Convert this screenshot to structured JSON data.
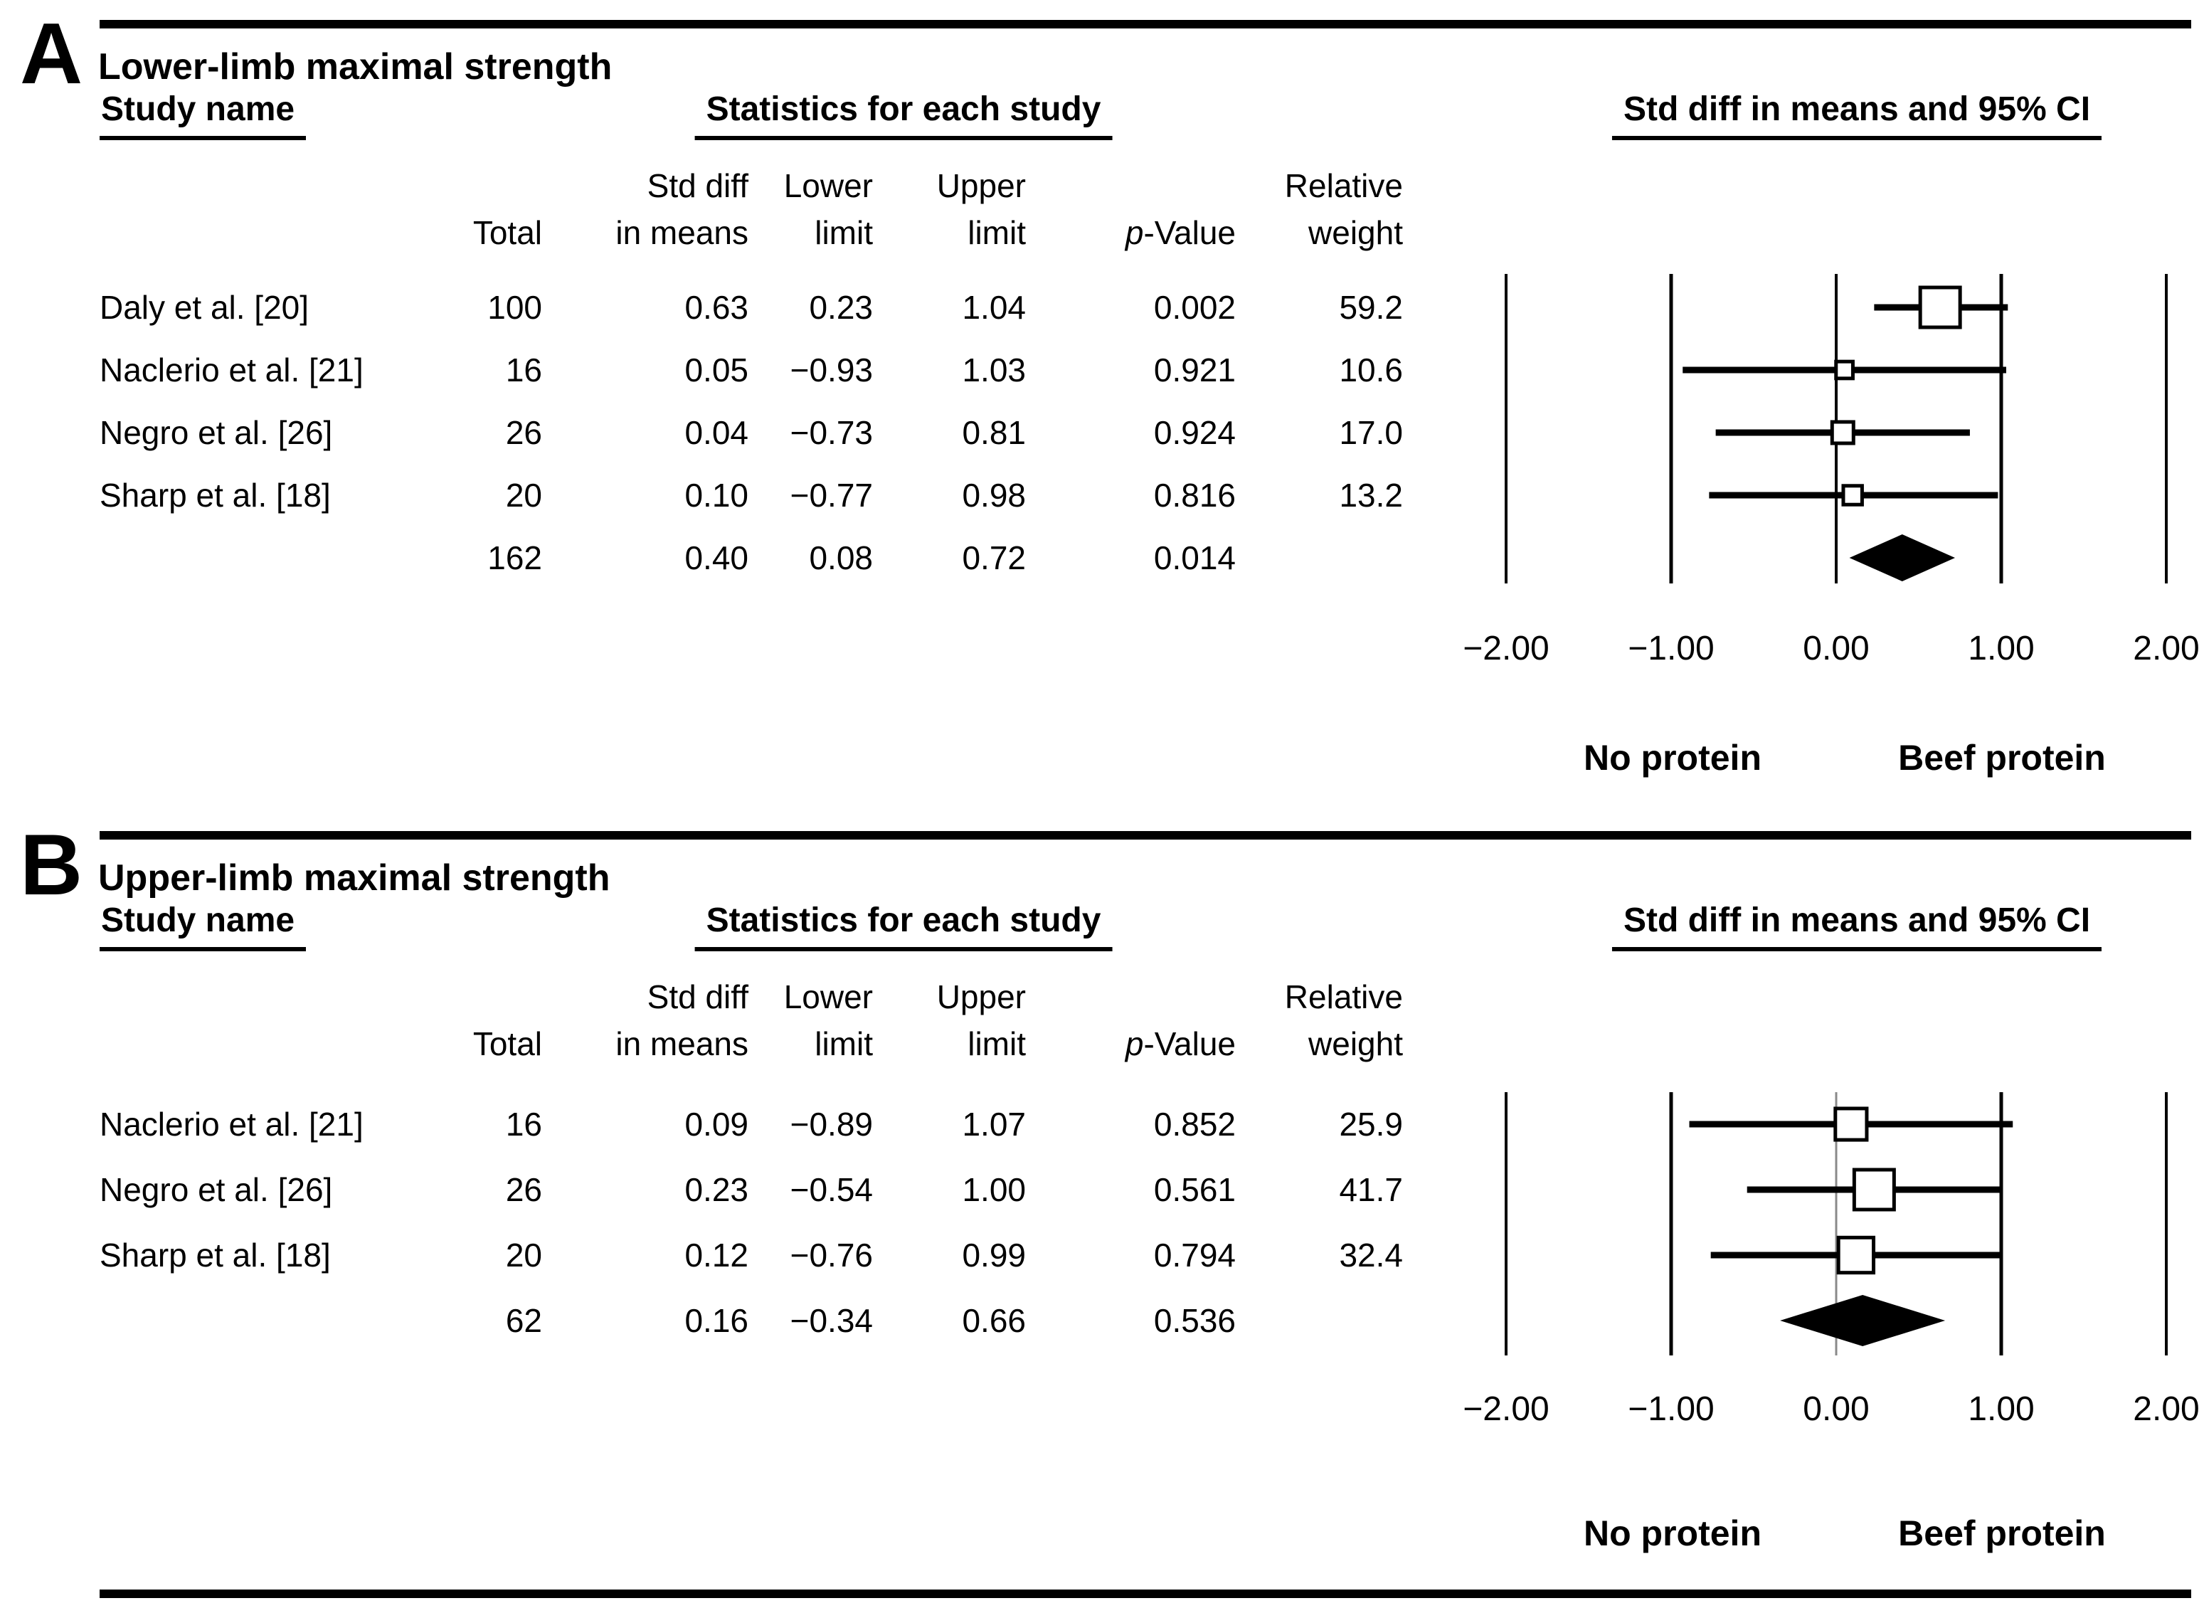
{
  "chart_data": [
    {
      "type": "forest",
      "panel_letter": "A",
      "title": "Lower-limb maximal strength",
      "col_group_headers": {
        "study": "Study name",
        "stats": "Statistics for each study",
        "plot": "Std diff in means and 95% CI"
      },
      "col_headers_line1": {
        "total": "",
        "std_diff": "Std diff",
        "lower": "Lower",
        "upper": "Upper",
        "p": "",
        "weight": "Relative"
      },
      "col_headers_line2": {
        "total": "Total",
        "std_diff": "in means",
        "lower": "limit",
        "upper": "limit",
        "p_prefix": "p",
        "p_suffix": "-Value",
        "weight": "weight"
      },
      "studies": [
        {
          "name": "Daly et al. [20]",
          "total": 100,
          "std_diff": 0.63,
          "lower": 0.23,
          "upper": 1.04,
          "p_value": 0.002,
          "rel_weight": 59.2
        },
        {
          "name": "Naclerio et al. [21]",
          "total": 16,
          "std_diff": 0.05,
          "lower": -0.93,
          "upper": 1.03,
          "p_value": 0.921,
          "rel_weight": 10.6
        },
        {
          "name": "Negro et al. [26]",
          "total": 26,
          "std_diff": 0.04,
          "lower": -0.73,
          "upper": 0.81,
          "p_value": 0.924,
          "rel_weight": 17.0
        },
        {
          "name": "Sharp et al. [18]",
          "total": 20,
          "std_diff": 0.1,
          "lower": -0.77,
          "upper": 0.98,
          "p_value": 0.816,
          "rel_weight": 13.2
        }
      ],
      "summary": {
        "total": 162,
        "std_diff": 0.4,
        "lower": 0.08,
        "upper": 0.72,
        "p_value": 0.014
      },
      "axis": {
        "min": -2,
        "max": 2,
        "ticks": [
          -2,
          -1,
          0,
          1,
          2
        ],
        "tick_labels": [
          "−2.00",
          "−1.00",
          "0.00",
          "1.00",
          "2.00"
        ]
      },
      "favours_left": "No protein",
      "favours_right": "Beef protein"
    },
    {
      "type": "forest",
      "panel_letter": "B",
      "title": "Upper-limb maximal strength",
      "col_group_headers": {
        "study": "Study name",
        "stats": "Statistics for each study",
        "plot": "Std diff in means and 95% CI"
      },
      "col_headers_line1": {
        "total": "",
        "std_diff": "Std diff",
        "lower": "Lower",
        "upper": "Upper",
        "p": "",
        "weight": "Relative"
      },
      "col_headers_line2": {
        "total": "Total",
        "std_diff": "in means",
        "lower": "limit",
        "upper": "limit",
        "p_prefix": "p",
        "p_suffix": "-Value",
        "weight": "weight"
      },
      "studies": [
        {
          "name": "Naclerio et al. [21]",
          "total": 16,
          "std_diff": 0.09,
          "lower": -0.89,
          "upper": 1.07,
          "p_value": 0.852,
          "rel_weight": 25.9
        },
        {
          "name": "Negro et al. [26]",
          "total": 26,
          "std_diff": 0.23,
          "lower": -0.54,
          "upper": 1.0,
          "p_value": 0.561,
          "rel_weight": 41.7
        },
        {
          "name": "Sharp et al. [18]",
          "total": 20,
          "std_diff": 0.12,
          "lower": -0.76,
          "upper": 0.99,
          "p_value": 0.794,
          "rel_weight": 32.4
        }
      ],
      "summary": {
        "total": 62,
        "std_diff": 0.16,
        "lower": -0.34,
        "upper": 0.66,
        "p_value": 0.536
      },
      "axis": {
        "min": -2,
        "max": 2,
        "ticks": [
          -2,
          -1,
          0,
          1,
          2
        ],
        "tick_labels": [
          "−2.00",
          "−1.00",
          "0.00",
          "1.00",
          "2.00"
        ]
      },
      "favours_left": "No protein",
      "favours_right": "Beef protein"
    }
  ],
  "colors": {
    "ink": "#000000",
    "zero_line_b": "#8a8a8a",
    "background": "#ffffff"
  }
}
